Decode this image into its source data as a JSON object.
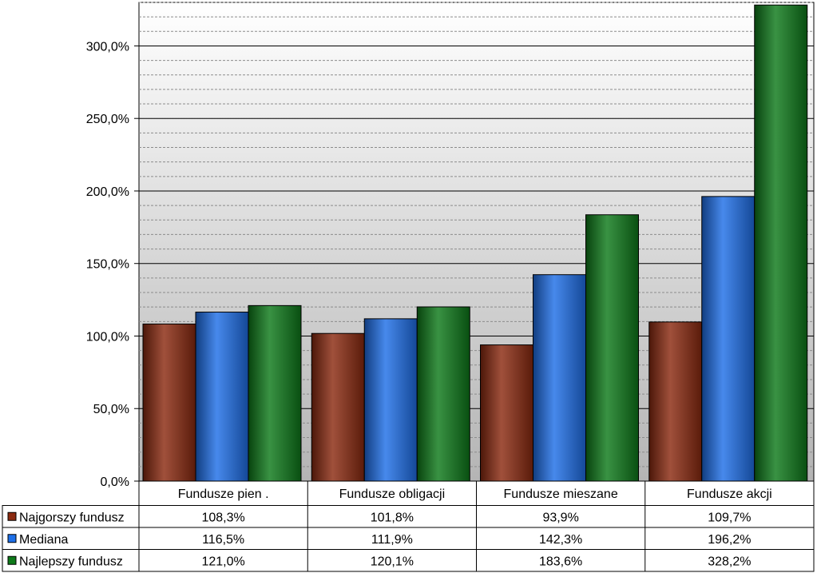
{
  "chart_data": {
    "type": "bar",
    "title": "",
    "xlabel": "",
    "ylabel": "",
    "ylim": [
      0,
      330
    ],
    "categories": [
      "Fundusze pien .",
      "Fundusze obligacji",
      "Fundusze mieszane",
      "Fundusze akcji"
    ],
    "series": [
      {
        "name": "Najgorszy fundusz",
        "color": "#8B2A10",
        "values": [
          108.3,
          101.8,
          93.9,
          109.7
        ],
        "labels": [
          "108,3%",
          "101,8%",
          "93,9%",
          "109,7%"
        ]
      },
      {
        "name": "Mediana",
        "color": "#1E6FE8",
        "values": [
          116.5,
          111.9,
          142.3,
          196.2
        ],
        "labels": [
          "116,5%",
          "111,9%",
          "142,3%",
          "196,2%"
        ]
      },
      {
        "name": "Najlepszy fundusz",
        "color": "#0E7A1A",
        "values": [
          121.0,
          120.1,
          183.6,
          328.2
        ],
        "labels": [
          "121,0%",
          "120,1%",
          "183,6%",
          "328,2%"
        ]
      }
    ],
    "y_ticks": [
      {
        "value": 0,
        "label": "0,0%"
      },
      {
        "value": 50,
        "label": "50,0%"
      },
      {
        "value": 100,
        "label": "100,0%"
      },
      {
        "value": 150,
        "label": "150,0%"
      },
      {
        "value": 200,
        "label": "200,0%"
      },
      {
        "value": 250,
        "label": "250,0%"
      },
      {
        "value": 300,
        "label": "300,0%"
      }
    ],
    "major_grid_step": 50,
    "minor_grid_step": 10,
    "grid": true,
    "legend": "data-table-below"
  }
}
